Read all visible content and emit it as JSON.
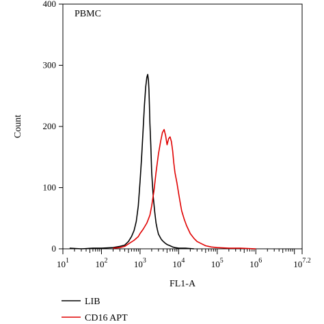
{
  "chart_data": {
    "type": "line",
    "annotation": "PBMC",
    "xlabel": "FL1-A",
    "ylabel": "Count",
    "x_scale": "log10",
    "xlim": [
      10,
      15848932
    ],
    "ylim": [
      0,
      400
    ],
    "y_ticks": [
      {
        "value": 0,
        "label": "0"
      },
      {
        "value": 100,
        "label": "100"
      },
      {
        "value": 200,
        "label": "200"
      },
      {
        "value": 300,
        "label": "300"
      },
      {
        "value": 400,
        "label": "400"
      }
    ],
    "x_ticks": [
      {
        "value": 10,
        "base": "10",
        "exp": "1"
      },
      {
        "value": 100,
        "base": "10",
        "exp": "2"
      },
      {
        "value": 1000,
        "base": "10",
        "exp": "3"
      },
      {
        "value": 10000,
        "base": "10",
        "exp": "4"
      },
      {
        "value": 100000,
        "base": "10",
        "exp": "5"
      },
      {
        "value": 1000000,
        "base": "10",
        "exp": "6"
      },
      {
        "value": 15848932,
        "base": "10",
        "exp": "7.2"
      }
    ],
    "grid": false,
    "legend_position": "bottom-left",
    "series": [
      {
        "name": "LIB",
        "color": "#000000",
        "x": [
          15,
          30,
          60,
          100,
          200,
          300,
          400,
          500,
          600,
          700,
          800,
          900,
          1000,
          1100,
          1200,
          1300,
          1400,
          1500,
          1580,
          1650,
          1700,
          1750,
          1800,
          1900,
          2000,
          2200,
          2400,
          2600,
          2800,
          3000,
          3300,
          3600,
          4000,
          4500,
          5000,
          6000,
          7000,
          8000,
          10000,
          15000,
          25000
        ],
        "values": [
          1,
          0,
          1,
          1,
          2,
          4,
          6,
          12,
          20,
          30,
          45,
          70,
          110,
          150,
          195,
          235,
          265,
          280,
          285,
          275,
          260,
          235,
          205,
          170,
          125,
          85,
          60,
          42,
          32,
          24,
          19,
          15,
          12,
          9,
          7,
          5,
          3,
          2,
          1,
          1,
          0
        ]
      },
      {
        "name": "CD16 APT",
        "color": "#e00000",
        "x": [
          200,
          300,
          400,
          500,
          700,
          900,
          1000,
          1200,
          1500,
          1800,
          2000,
          2300,
          2600,
          3000,
          3400,
          3800,
          4200,
          4600,
          5000,
          5500,
          6000,
          6500,
          7000,
          7500,
          8000,
          9000,
          10000,
          11000,
          12000,
          14000,
          16000,
          20000,
          25000,
          30000,
          40000,
          50000,
          70000,
          100000,
          200000,
          400000,
          1000000
        ],
        "values": [
          1,
          2,
          4,
          8,
          14,
          20,
          25,
          32,
          42,
          55,
          70,
          95,
          125,
          155,
          175,
          190,
          195,
          185,
          170,
          180,
          183,
          175,
          160,
          140,
          125,
          108,
          90,
          75,
          62,
          48,
          38,
          25,
          17,
          12,
          8,
          5,
          3,
          2,
          1,
          1,
          0
        ]
      }
    ]
  },
  "chart_ui": {
    "tick_label_color": "#000000",
    "axis_color": "#000000"
  }
}
